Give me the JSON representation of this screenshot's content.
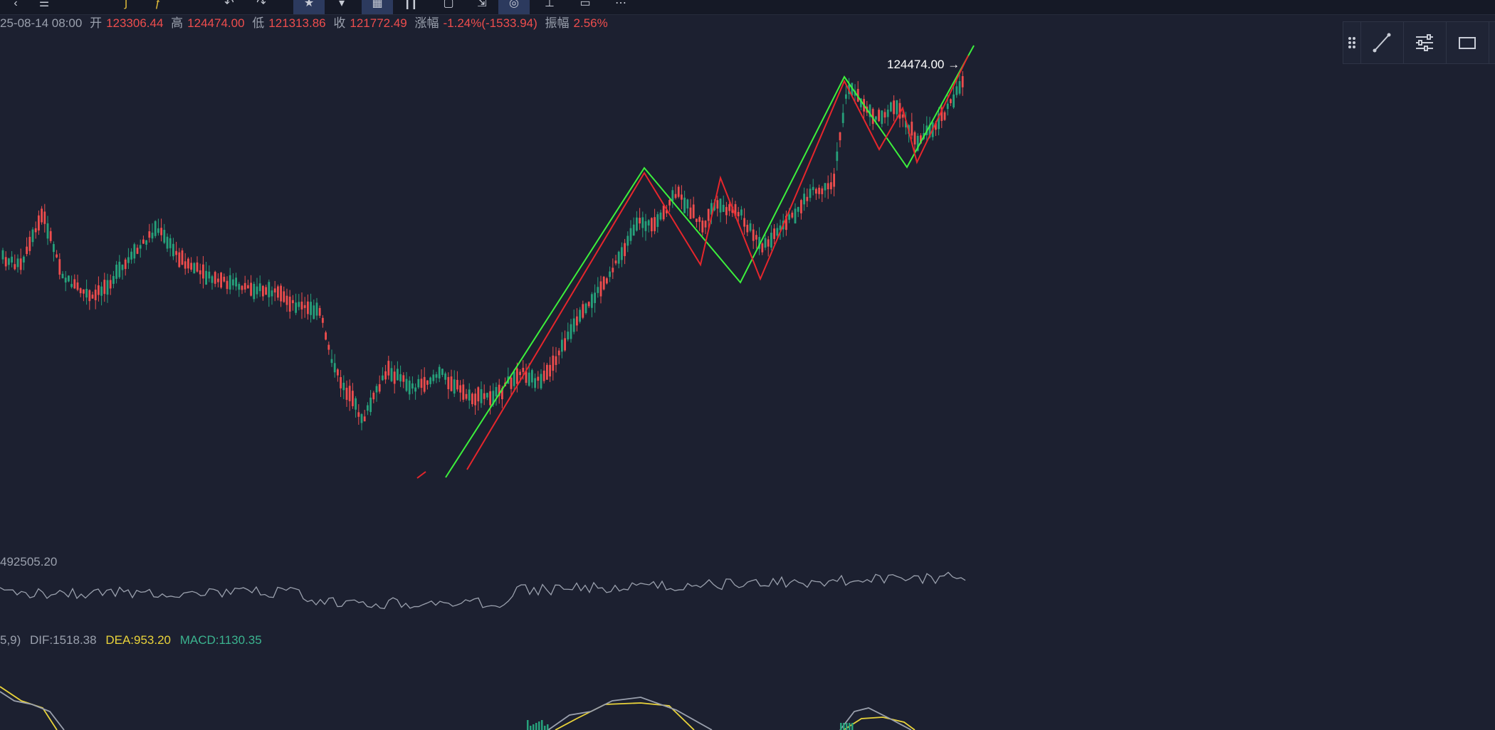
{
  "toolbar": {
    "buttons": [
      {
        "icon": "chevron-icon",
        "glyph": "‹",
        "active": false
      },
      {
        "icon": "menu-icon",
        "glyph": "☰",
        "active": false
      },
      {
        "icon": "indicator-icon",
        "glyph": "ʃ",
        "active": false,
        "yellow": true
      },
      {
        "icon": "fx-icon",
        "glyph": "ƒ",
        "active": false,
        "yellow": true
      },
      {
        "icon": "undo-icon",
        "glyph": "↶",
        "active": false
      },
      {
        "icon": "redo-icon",
        "glyph": "↷",
        "active": false
      },
      {
        "icon": "star-icon",
        "glyph": "★",
        "active": true
      },
      {
        "icon": "dropdown-icon",
        "glyph": "▾",
        "active": false
      },
      {
        "icon": "layout-icon",
        "glyph": "▦",
        "active": true
      },
      {
        "icon": "candles-icon",
        "glyph": "┃┃",
        "active": false
      },
      {
        "icon": "screenshot-icon",
        "glyph": "▢",
        "active": false
      },
      {
        "icon": "compare-icon",
        "glyph": "⇲",
        "active": false
      },
      {
        "icon": "drawing-icon",
        "glyph": "◎",
        "active": true
      },
      {
        "icon": "pin-icon",
        "glyph": "⊥",
        "active": false
      },
      {
        "icon": "window-icon",
        "glyph": "▭",
        "active": false
      },
      {
        "icon": "more-icon",
        "glyph": "⋯",
        "active": false
      }
    ]
  },
  "ohlc": {
    "datetime": "25-08-14 08:00",
    "open_label": "开",
    "open": "123306.44",
    "high_label": "高",
    "high": "124474.00",
    "low_label": "低",
    "low": "121313.86",
    "close_label": "收",
    "close": "121772.49",
    "change_label": "涨幅",
    "change": "-1.24%(-1533.94)",
    "amplitude_label": "振幅",
    "amplitude": "2.56%"
  },
  "price_marker": {
    "text": "124474.00",
    "arrow": "→"
  },
  "float_tools": [
    "drag-handle-icon",
    "line-tool-icon",
    "settings-icon",
    "rectangle-icon"
  ],
  "volume": {
    "value": "492505.20"
  },
  "macd": {
    "params": "5,9)",
    "dif": "DIF:1518.38",
    "dea": "DEA:953.20",
    "macd": "MACD:1130.35"
  },
  "colors": {
    "background": "#1c2030",
    "up": "#26a17b",
    "down": "#ee4d4d",
    "zigzag_green": "#3cf03c",
    "zigzag_red": "#e6262c",
    "dea_yellow": "#e9d33a",
    "volume_line": "#9aa0ad"
  }
}
